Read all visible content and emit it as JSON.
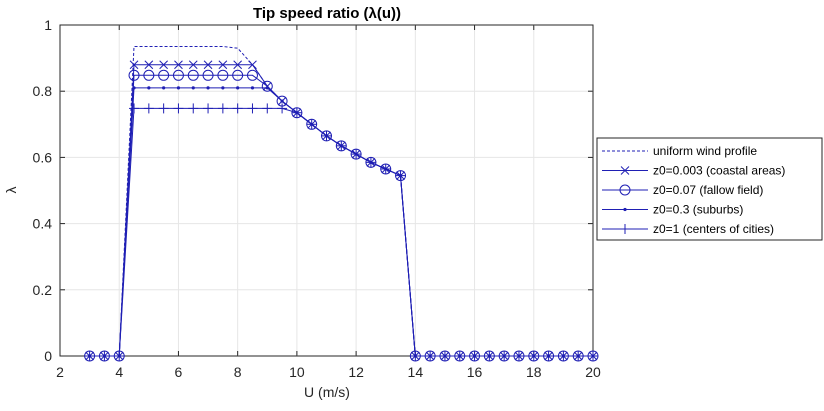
{
  "chart_data": {
    "type": "line",
    "title": "Tip speed ratio (λ(u))",
    "xlabel": "U (m/s)",
    "ylabel": "λ",
    "xlim": [
      2,
      20
    ],
    "ylim": [
      0,
      1
    ],
    "xticks": [
      "2",
      "4",
      "6",
      "8",
      "10",
      "12",
      "14",
      "16",
      "18",
      "20"
    ],
    "yticks": [
      "0",
      "0.2",
      "0.4",
      "0.6",
      "0.8",
      "1"
    ],
    "grid": true,
    "legend_position": "outside-right",
    "series_color": "#1f1fb4",
    "x": [
      3,
      3.5,
      4,
      4.5,
      5,
      5.5,
      6,
      6.5,
      7,
      7.5,
      8,
      8.5,
      9,
      9.5,
      10,
      10.5,
      11,
      11.5,
      12,
      12.5,
      13,
      13.5,
      14,
      14.5,
      15,
      15.5,
      16,
      16.5,
      17,
      17.5,
      18,
      18.5,
      19,
      19.5,
      20
    ],
    "series": [
      {
        "name": "uniform wind profile",
        "marker": "none",
        "dashed": true,
        "values": [
          0,
          0,
          0,
          0.935,
          0.935,
          0.935,
          0.935,
          0.935,
          0.935,
          0.935,
          0.93,
          0.88,
          0.815,
          0.77,
          0.735,
          0.7,
          0.665,
          0.635,
          0.61,
          0.585,
          0.565,
          0.545,
          0,
          0,
          0,
          0,
          0,
          0,
          0,
          0,
          0,
          0,
          0,
          0,
          0
        ]
      },
      {
        "name": "z0=0.003 (coastal areas)",
        "marker": "x",
        "dashed": false,
        "values": [
          0,
          0,
          0,
          0.88,
          0.88,
          0.88,
          0.88,
          0.88,
          0.88,
          0.88,
          0.88,
          0.88,
          0.815,
          0.77,
          0.735,
          0.7,
          0.665,
          0.635,
          0.61,
          0.585,
          0.565,
          0.545,
          0,
          0,
          0,
          0,
          0,
          0,
          0,
          0,
          0,
          0,
          0,
          0,
          0
        ]
      },
      {
        "name": "z0=0.07 (fallow field)",
        "marker": "o",
        "dashed": false,
        "values": [
          0,
          0,
          0,
          0.848,
          0.848,
          0.848,
          0.848,
          0.848,
          0.848,
          0.848,
          0.848,
          0.848,
          0.815,
          0.77,
          0.735,
          0.7,
          0.665,
          0.635,
          0.61,
          0.585,
          0.565,
          0.545,
          0,
          0,
          0,
          0,
          0,
          0,
          0,
          0,
          0,
          0,
          0,
          0,
          0
        ]
      },
      {
        "name": "z0=0.3 (suburbs)",
        "marker": ".",
        "dashed": false,
        "values": [
          0,
          0,
          0,
          0.81,
          0.81,
          0.81,
          0.81,
          0.81,
          0.81,
          0.81,
          0.81,
          0.81,
          0.81,
          0.77,
          0.735,
          0.7,
          0.665,
          0.635,
          0.61,
          0.585,
          0.565,
          0.545,
          0,
          0,
          0,
          0,
          0,
          0,
          0,
          0,
          0,
          0,
          0,
          0,
          0
        ]
      },
      {
        "name": "z0=1 (centers of cities)",
        "marker": "+",
        "dashed": false,
        "values": [
          0,
          0,
          0,
          0.748,
          0.748,
          0.748,
          0.748,
          0.748,
          0.748,
          0.748,
          0.748,
          0.748,
          0.748,
          0.748,
          0.735,
          0.7,
          0.665,
          0.635,
          0.61,
          0.585,
          0.565,
          0.545,
          0,
          0,
          0,
          0,
          0,
          0,
          0,
          0,
          0,
          0,
          0,
          0,
          0
        ]
      }
    ]
  }
}
